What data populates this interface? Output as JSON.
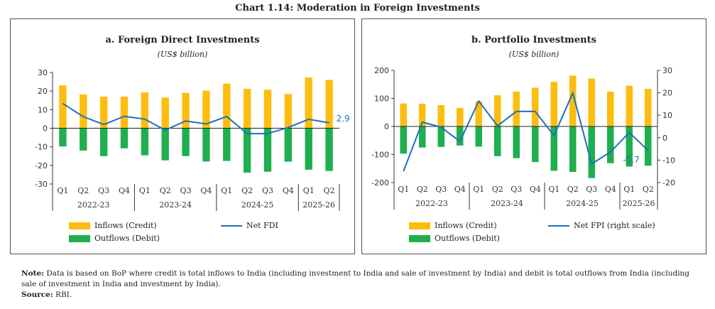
{
  "title": "Chart 1.14: Moderation in Foreign Investments",
  "legend": {
    "inflows": "Inflows (Credit)",
    "outflows": "Outflows (Debit)",
    "net_fdi": "Net FDI",
    "net_fpi": "Net FPI (right scale)"
  },
  "colors": {
    "inflows": "#fdbd10",
    "outflows": "#1faf4e",
    "net": "#1f6fbf"
  },
  "note": {
    "label": "Note:",
    "text": "Data is based on BoP where credit is total inflows to India (including investment to India and sale of investment by India) and debit is total outflows from India (including sale of investment in India and investment by India).",
    "source_label": "Source:",
    "source": "RBI."
  },
  "chart_data": [
    {
      "type": "bar",
      "title": "a. Foreign Direct Investments",
      "unit": "(US$ billion)",
      "categories": [
        "Q1",
        "Q2",
        "Q3",
        "Q4",
        "Q1",
        "Q2",
        "Q3",
        "Q4",
        "Q1",
        "Q2",
        "Q3",
        "Q4",
        "Q1",
        "Q2"
      ],
      "groups": [
        {
          "label": "2022-23",
          "n": 4
        },
        {
          "label": "2023-24",
          "n": 4
        },
        {
          "label": "2024-25",
          "n": 4
        },
        {
          "label": "2025-26",
          "n": 2
        }
      ],
      "ylim": [
        -30,
        30
      ],
      "yticks": [
        30,
        20,
        10,
        0,
        -10,
        -20,
        -30
      ],
      "series": [
        {
          "name": "Inflows (Credit)",
          "kind": "bar",
          "values": [
            23,
            18.2,
            17,
            17,
            19.3,
            16.5,
            19,
            20.2,
            24,
            21.2,
            20.7,
            18.4,
            27.3,
            26
          ]
        },
        {
          "name": "Outflows (Debit)",
          "kind": "bar",
          "values": [
            -9.8,
            -12,
            -15,
            -10.8,
            -14.6,
            -17.3,
            -15,
            -17.9,
            -17.6,
            -23.9,
            -23.4,
            -18,
            -22.3,
            -23
          ]
        },
        {
          "name": "Net FDI",
          "kind": "line",
          "axis": "left",
          "values": [
            13.3,
            6.2,
            2.0,
            6.4,
            4.9,
            -1,
            3.9,
            2.3,
            6.3,
            -2.9,
            -2.9,
            0.4,
            4.8,
            2.9
          ]
        }
      ],
      "annotation": "2.9"
    },
    {
      "type": "bar",
      "title": "b. Portfolio Investments",
      "unit": "(US$ billion)",
      "categories": [
        "Q1",
        "Q2",
        "Q3",
        "Q4",
        "Q1",
        "Q2",
        "Q3",
        "Q4",
        "Q1",
        "Q2",
        "Q3",
        "Q4",
        "Q1",
        "Q2"
      ],
      "groups": [
        {
          "label": "2022-23",
          "n": 4
        },
        {
          "label": "2023-24",
          "n": 4
        },
        {
          "label": "2024-25",
          "n": 4
        },
        {
          "label": "2025-26",
          "n": 2
        }
      ],
      "ylim": [
        -200,
        200
      ],
      "yticks": [
        200,
        100,
        0,
        -100,
        -200
      ],
      "y2lim": [
        -20,
        30
      ],
      "y2ticks": [
        30,
        20,
        10,
        0,
        -10,
        -20
      ],
      "series": [
        {
          "name": "Inflows (Credit)",
          "kind": "bar",
          "values": [
            82,
            81,
            76,
            66,
            89,
            111,
            124,
            138,
            159,
            181,
            171,
            124,
            145,
            134
          ]
        },
        {
          "name": "Outflows (Debit)",
          "kind": "bar",
          "values": [
            -97,
            -75,
            -73,
            -68,
            -72,
            -106,
            -113,
            -127,
            -158,
            -162,
            -184,
            -131,
            -143,
            -140
          ]
        },
        {
          "name": "Net FPI (right scale)",
          "kind": "line",
          "axis": "right",
          "values": [
            -15,
            6.9,
            4.7,
            -1.7,
            16.3,
            5.3,
            11.7,
            11.7,
            0.9,
            19.9,
            -11.7,
            -6.4,
            2.3,
            -5.7
          ]
        }
      ],
      "annotation": "-5.7"
    }
  ]
}
